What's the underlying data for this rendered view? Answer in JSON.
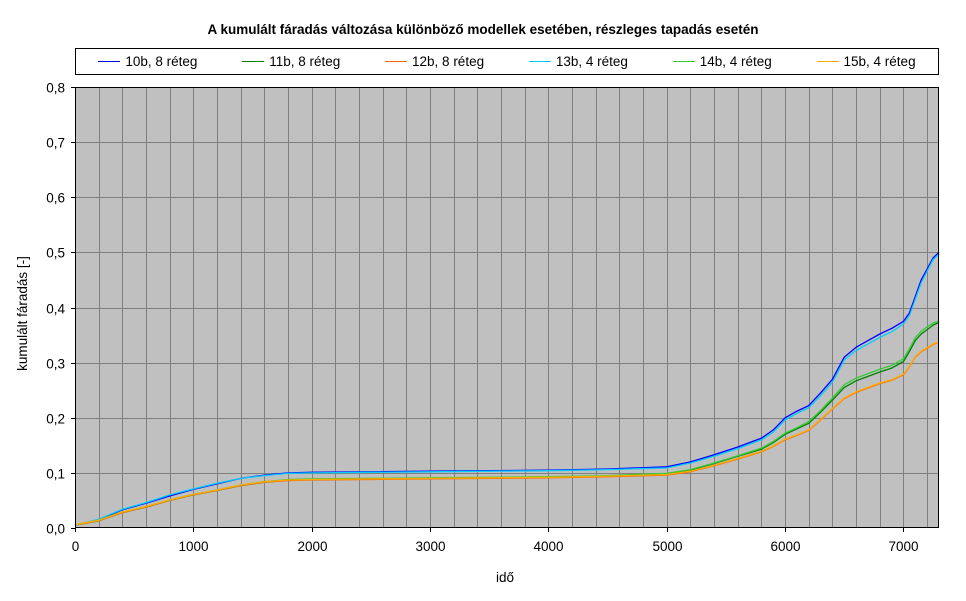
{
  "chart_data": {
    "type": "line",
    "title": "A kumulált fáradás változása különböző modellek esetében, részleges tapadás esetén",
    "xlabel": "idő",
    "ylabel": "kumulált fáradás [-]",
    "xlim": [
      0,
      7300
    ],
    "ylim": [
      0,
      0.8
    ],
    "x_ticks": [
      0,
      1000,
      2000,
      3000,
      4000,
      5000,
      6000,
      7000
    ],
    "x_tick_labels": [
      "0",
      "1000",
      "2000",
      "3000",
      "4000",
      "5000",
      "6000",
      "7000"
    ],
    "y_ticks": [
      0,
      0.1,
      0.2,
      0.3,
      0.4,
      0.5,
      0.6,
      0.7,
      0.8
    ],
    "y_tick_labels": [
      "0,0",
      "0,1",
      "0,2",
      "0,3",
      "0,4",
      "0,5",
      "0,6",
      "0,7",
      "0,8"
    ],
    "x_minor_step": 200,
    "grid": true,
    "plot_background": "#c0c0c0",
    "grid_color": "#808080",
    "legend_position": "top",
    "x": [
      0,
      200,
      400,
      600,
      800,
      1000,
      1200,
      1400,
      1600,
      1800,
      2000,
      2500,
      3000,
      3500,
      4000,
      4500,
      5000,
      5200,
      5400,
      5600,
      5800,
      5900,
      6000,
      6100,
      6200,
      6300,
      6400,
      6500,
      6600,
      6700,
      6800,
      6900,
      7000,
      7050,
      7100,
      7150,
      7200,
      7250,
      7300
    ],
    "series": [
      {
        "name": "10b, 8 réteg",
        "color": "#0000ff",
        "values": [
          0.005,
          0.015,
          0.033,
          0.045,
          0.058,
          0.07,
          0.08,
          0.09,
          0.096,
          0.1,
          0.101,
          0.102,
          0.103,
          0.104,
          0.105,
          0.107,
          0.111,
          0.12,
          0.133,
          0.147,
          0.163,
          0.178,
          0.2,
          0.212,
          0.222,
          0.245,
          0.27,
          0.31,
          0.328,
          0.34,
          0.352,
          0.362,
          0.375,
          0.39,
          0.42,
          0.45,
          0.47,
          0.49,
          0.5
        ]
      },
      {
        "name": "11b, 8 réteg",
        "color": "#008000",
        "values": [
          0.005,
          0.013,
          0.028,
          0.038,
          0.05,
          0.06,
          0.068,
          0.077,
          0.083,
          0.087,
          0.088,
          0.089,
          0.09,
          0.091,
          0.092,
          0.094,
          0.098,
          0.105,
          0.117,
          0.13,
          0.143,
          0.155,
          0.17,
          0.18,
          0.19,
          0.21,
          0.232,
          0.255,
          0.267,
          0.275,
          0.283,
          0.29,
          0.302,
          0.32,
          0.34,
          0.352,
          0.36,
          0.368,
          0.373
        ]
      },
      {
        "name": "12b, 8 réteg",
        "color": "#ff6600",
        "values": [
          0.005,
          0.013,
          0.028,
          0.038,
          0.05,
          0.06,
          0.068,
          0.077,
          0.083,
          0.086,
          0.087,
          0.088,
          0.089,
          0.09,
          0.091,
          0.093,
          0.096,
          0.102,
          0.113,
          0.125,
          0.138,
          0.148,
          0.16,
          0.168,
          0.177,
          0.196,
          0.216,
          0.235,
          0.246,
          0.254,
          0.262,
          0.268,
          0.278,
          0.292,
          0.31,
          0.32,
          0.326,
          0.333,
          0.337
        ]
      },
      {
        "name": "13b, 4 réteg",
        "color": "#00ccff",
        "values": [
          0.005,
          0.016,
          0.034,
          0.046,
          0.06,
          0.071,
          0.081,
          0.09,
          0.095,
          0.099,
          0.1,
          0.101,
          0.102,
          0.103,
          0.104,
          0.106,
          0.109,
          0.118,
          0.13,
          0.144,
          0.16,
          0.174,
          0.196,
          0.208,
          0.218,
          0.24,
          0.265,
          0.305,
          0.322,
          0.334,
          0.346,
          0.356,
          0.37,
          0.385,
          0.415,
          0.445,
          0.466,
          0.487,
          0.497
        ]
      },
      {
        "name": "14b, 4 réteg",
        "color": "#33cc33",
        "values": [
          0.006,
          0.014,
          0.029,
          0.039,
          0.051,
          0.061,
          0.069,
          0.078,
          0.084,
          0.088,
          0.089,
          0.09,
          0.091,
          0.092,
          0.093,
          0.095,
          0.099,
          0.106,
          0.118,
          0.131,
          0.145,
          0.157,
          0.172,
          0.182,
          0.193,
          0.213,
          0.236,
          0.26,
          0.272,
          0.28,
          0.288,
          0.295,
          0.307,
          0.325,
          0.345,
          0.357,
          0.365,
          0.372,
          0.375
        ]
      },
      {
        "name": "15b, 4 réteg",
        "color": "#ffaa00",
        "values": [
          0.006,
          0.014,
          0.029,
          0.039,
          0.051,
          0.061,
          0.069,
          0.078,
          0.084,
          0.087,
          0.088,
          0.089,
          0.09,
          0.091,
          0.092,
          0.094,
          0.097,
          0.103,
          0.114,
          0.126,
          0.139,
          0.149,
          0.161,
          0.169,
          0.178,
          0.197,
          0.217,
          0.236,
          0.247,
          0.255,
          0.263,
          0.269,
          0.279,
          0.293,
          0.311,
          0.321,
          0.327,
          0.334,
          0.338
        ]
      }
    ]
  }
}
